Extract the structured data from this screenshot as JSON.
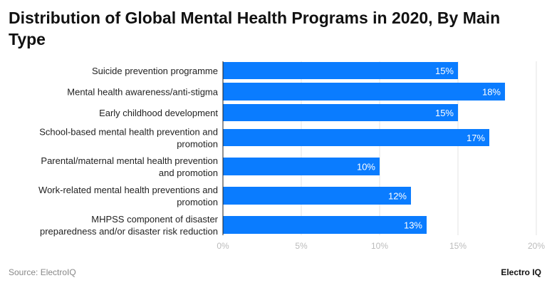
{
  "chart_data": {
    "type": "bar",
    "orientation": "horizontal",
    "title": "Distribution of Global Mental Health Programs in 2020, By Main Type",
    "categories": [
      [
        "Suicide prevention programme"
      ],
      [
        "Mental health awareness/anti-stigma"
      ],
      [
        "Early childhood development"
      ],
      [
        "School-based mental health prevention and",
        "promotion"
      ],
      [
        "Parental/maternal mental health prevention",
        "and promotion"
      ],
      [
        "Work-related mental health preventions and",
        "promotion"
      ],
      [
        "MHPSS component of disaster",
        "preparedness and/or disaster risk reduction"
      ]
    ],
    "values": [
      15,
      18,
      15,
      17,
      10,
      12,
      13
    ],
    "data_labels": [
      "15%",
      "18%",
      "15%",
      "17%",
      "10%",
      "12%",
      "13%"
    ],
    "xlim": [
      0,
      20
    ],
    "xticks": [
      0,
      5,
      10,
      15,
      20
    ],
    "xtick_labels": [
      "0%",
      "5%",
      "10%",
      "15%",
      "20%"
    ],
    "grid": true,
    "bar_color": "#0a7cff"
  },
  "footer": {
    "source": "Source: ElectroIQ",
    "logo": "Electro IQ"
  }
}
